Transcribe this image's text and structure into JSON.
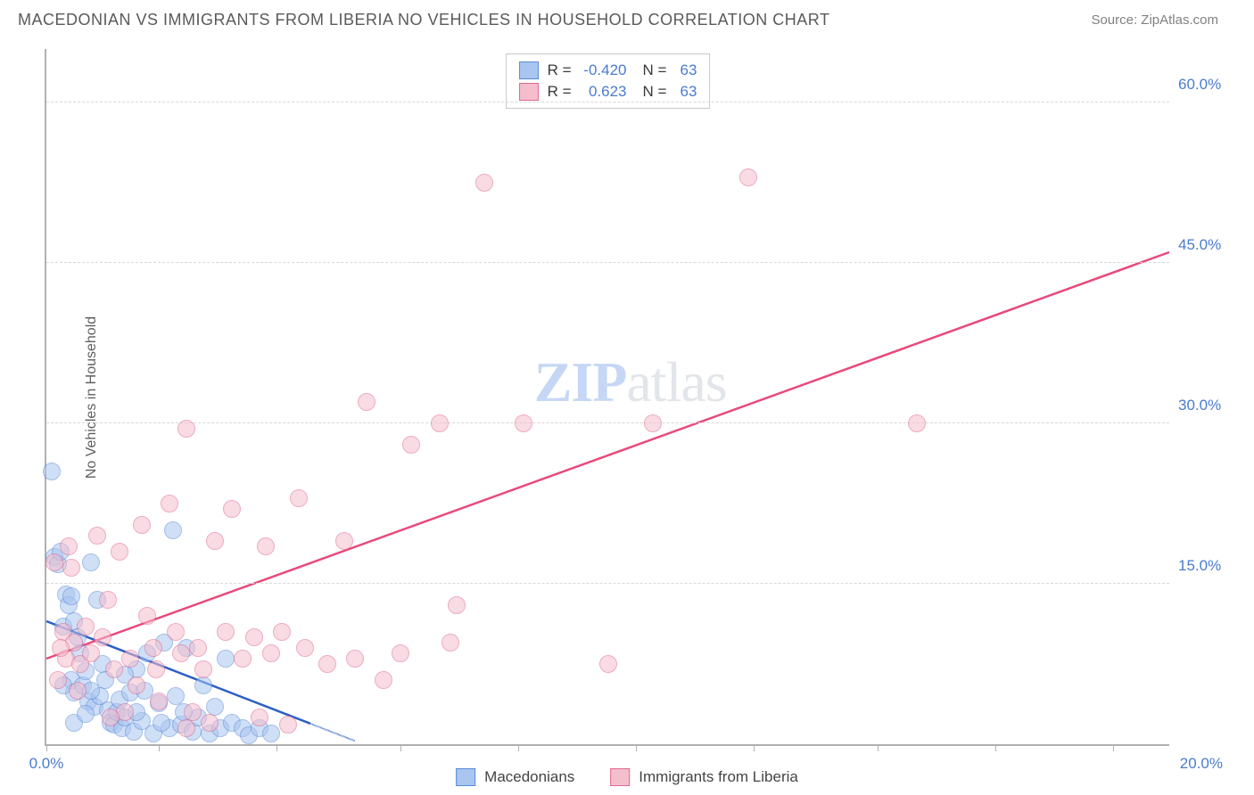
{
  "header": {
    "title": "MACEDONIAN VS IMMIGRANTS FROM LIBERIA NO VEHICLES IN HOUSEHOLD CORRELATION CHART",
    "source": "Source: ZipAtlas.com"
  },
  "y_axis": {
    "label": "No Vehicles in Household",
    "ticks": [
      15.0,
      30.0,
      45.0,
      60.0
    ],
    "format_suffix": "%"
  },
  "x_axis": {
    "min": 0.0,
    "max": 20.0,
    "left_label": "0.0%",
    "right_label": "20.0%",
    "tick_positions": [
      0,
      2.0,
      4.1,
      6.3,
      8.4,
      10.5,
      12.6,
      14.8,
      16.9,
      19.0
    ]
  },
  "chart": {
    "type": "scatter",
    "xlim": [
      0,
      20
    ],
    "ylim": [
      0,
      65
    ],
    "background_color": "#ffffff",
    "grid_color": "#d8d8d8",
    "point_radius": 10,
    "point_opacity": 0.55,
    "series": [
      {
        "key": "macedonians",
        "label": "Macedonians",
        "fill": "#a9c5f0",
        "stroke": "#5a8bd8",
        "line_color": "#2d5fc4",
        "r_value": "-0.420",
        "n_value": "63",
        "trend": {
          "x1": 0,
          "y1": 11.5,
          "x2": 5.5,
          "y2": 0.3,
          "dash_after_x": 4.7
        },
        "points": [
          [
            0.1,
            25.5
          ],
          [
            0.15,
            17.5
          ],
          [
            0.2,
            16.8
          ],
          [
            0.25,
            18.0
          ],
          [
            0.3,
            11.0
          ],
          [
            0.35,
            14.0
          ],
          [
            0.4,
            13.0
          ],
          [
            0.45,
            13.8
          ],
          [
            0.5,
            11.5
          ],
          [
            0.55,
            10.0
          ],
          [
            0.6,
            8.5
          ],
          [
            0.45,
            6.0
          ],
          [
            0.5,
            4.8
          ],
          [
            0.65,
            5.5
          ],
          [
            0.7,
            6.8
          ],
          [
            0.75,
            4.0
          ],
          [
            0.8,
            17.0
          ],
          [
            0.85,
            3.5
          ],
          [
            0.9,
            13.5
          ],
          [
            0.95,
            4.5
          ],
          [
            1.0,
            7.5
          ],
          [
            1.05,
            6.0
          ],
          [
            1.1,
            3.2
          ],
          [
            1.15,
            2.0
          ],
          [
            1.2,
            1.8
          ],
          [
            1.25,
            3.0
          ],
          [
            1.3,
            4.2
          ],
          [
            1.35,
            1.5
          ],
          [
            1.4,
            2.5
          ],
          [
            1.5,
            4.8
          ],
          [
            1.55,
            1.2
          ],
          [
            1.6,
            7.0
          ],
          [
            1.7,
            2.2
          ],
          [
            1.8,
            8.5
          ],
          [
            1.9,
            1.0
          ],
          [
            2.0,
            3.8
          ],
          [
            2.1,
            9.5
          ],
          [
            2.2,
            1.5
          ],
          [
            2.25,
            20.0
          ],
          [
            2.3,
            4.5
          ],
          [
            2.4,
            1.8
          ],
          [
            2.5,
            9.0
          ],
          [
            2.6,
            1.2
          ],
          [
            2.7,
            2.5
          ],
          [
            2.8,
            5.5
          ],
          [
            2.9,
            1.0
          ],
          [
            3.0,
            3.5
          ],
          [
            3.1,
            1.5
          ],
          [
            3.2,
            8.0
          ],
          [
            3.3,
            2.0
          ],
          [
            3.5,
            1.5
          ],
          [
            3.6,
            0.8
          ],
          [
            3.8,
            1.5
          ],
          [
            4.0,
            1.0
          ],
          [
            0.3,
            5.5
          ],
          [
            0.5,
            2.0
          ],
          [
            0.7,
            2.8
          ],
          [
            0.8,
            5.0
          ],
          [
            1.4,
            6.5
          ],
          [
            1.6,
            3.0
          ],
          [
            1.75,
            5.0
          ],
          [
            2.05,
            2.0
          ],
          [
            2.45,
            3.0
          ]
        ]
      },
      {
        "key": "liberia",
        "label": "Immigrants from Liberia",
        "fill": "#f5becd",
        "stroke": "#e06890",
        "line_color": "#e84a7a",
        "r_value": "0.623",
        "n_value": "63",
        "trend": {
          "x1": 0,
          "y1": 8.0,
          "x2": 20,
          "y2": 46.0,
          "dash_after_x": 20
        },
        "points": [
          [
            0.15,
            17.0
          ],
          [
            0.3,
            10.5
          ],
          [
            0.35,
            8.0
          ],
          [
            0.4,
            18.5
          ],
          [
            0.5,
            9.5
          ],
          [
            0.6,
            7.5
          ],
          [
            0.7,
            11.0
          ],
          [
            0.8,
            8.5
          ],
          [
            0.9,
            19.5
          ],
          [
            1.0,
            10.0
          ],
          [
            1.1,
            13.5
          ],
          [
            1.2,
            7.0
          ],
          [
            1.3,
            18.0
          ],
          [
            1.4,
            3.0
          ],
          [
            1.5,
            8.0
          ],
          [
            1.6,
            5.5
          ],
          [
            1.7,
            20.5
          ],
          [
            1.8,
            12.0
          ],
          [
            1.9,
            9.0
          ],
          [
            2.0,
            4.0
          ],
          [
            2.2,
            22.5
          ],
          [
            2.3,
            10.5
          ],
          [
            2.4,
            8.5
          ],
          [
            2.5,
            1.5
          ],
          [
            2.6,
            3.0
          ],
          [
            2.5,
            29.5
          ],
          [
            2.7,
            9.0
          ],
          [
            2.8,
            7.0
          ],
          [
            2.9,
            2.0
          ],
          [
            3.0,
            19.0
          ],
          [
            3.2,
            10.5
          ],
          [
            3.3,
            22.0
          ],
          [
            3.5,
            8.0
          ],
          [
            3.7,
            10.0
          ],
          [
            3.8,
            2.5
          ],
          [
            3.9,
            18.5
          ],
          [
            4.0,
            8.5
          ],
          [
            4.2,
            10.5
          ],
          [
            4.3,
            1.8
          ],
          [
            4.5,
            23.0
          ],
          [
            4.6,
            9.0
          ],
          [
            5.0,
            7.5
          ],
          [
            5.3,
            19.0
          ],
          [
            5.5,
            8.0
          ],
          [
            5.7,
            32.0
          ],
          [
            6.0,
            6.0
          ],
          [
            6.3,
            8.5
          ],
          [
            6.5,
            28.0
          ],
          [
            7.0,
            30.0
          ],
          [
            7.2,
            9.5
          ],
          [
            7.3,
            13.0
          ],
          [
            7.8,
            52.5
          ],
          [
            8.5,
            30.0
          ],
          [
            10.0,
            7.5
          ],
          [
            10.8,
            30.0
          ],
          [
            12.5,
            53.0
          ],
          [
            15.5,
            30.0
          ],
          [
            0.2,
            6.0
          ],
          [
            0.25,
            9.0
          ],
          [
            0.45,
            16.5
          ],
          [
            0.55,
            5.0
          ],
          [
            1.15,
            2.5
          ],
          [
            1.95,
            7.0
          ]
        ]
      }
    ]
  },
  "watermark": {
    "part1": "ZIP",
    "part2": "atlas"
  },
  "stats_box": {
    "label_r": "R =",
    "label_n": "N ="
  }
}
